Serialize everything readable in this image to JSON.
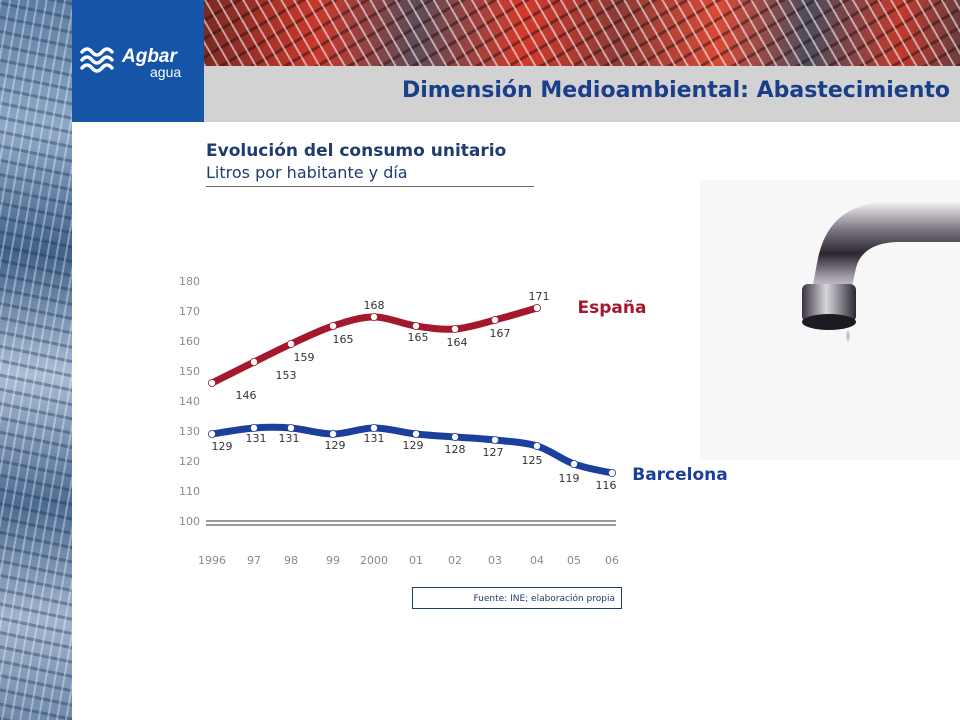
{
  "brand": {
    "name_line1": "Agbar",
    "name_line2": "agua",
    "color": "#1554a6"
  },
  "page_title": "Dimensión Medioambiental: Abastecimiento",
  "source_note": "Fuente: INE; elaboración propia",
  "chart_data": {
    "type": "line",
    "title": "Evolución del consumo unitario",
    "subtitle": "Litros por habitante y día",
    "categories": [
      "1996",
      "97",
      "98",
      "99",
      "2000",
      "01",
      "02",
      "03",
      "04",
      "05",
      "06"
    ],
    "yticks": [
      100,
      110,
      120,
      130,
      140,
      150,
      160,
      170,
      180
    ],
    "ylim": [
      100,
      180
    ],
    "grid": false,
    "series": [
      {
        "name": "España",
        "color": "#a3182d",
        "values": [
          146,
          153,
          159,
          165,
          168,
          165,
          164,
          167,
          171,
          null,
          null
        ]
      },
      {
        "name": "Barcelona",
        "color": "#1c3f9e",
        "values": [
          129,
          131,
          131,
          129,
          131,
          129,
          128,
          127,
          125,
          119,
          116
        ]
      }
    ],
    "point_labels": {
      "España": [
        "146",
        "153",
        "159",
        "165",
        "168",
        "165",
        "164",
        "167",
        "171",
        "",
        ""
      ],
      "Barcelona": [
        "129",
        "131",
        "131",
        "129",
        "131",
        "129",
        "128",
        "127",
        "125",
        "119",
        "116"
      ]
    }
  }
}
